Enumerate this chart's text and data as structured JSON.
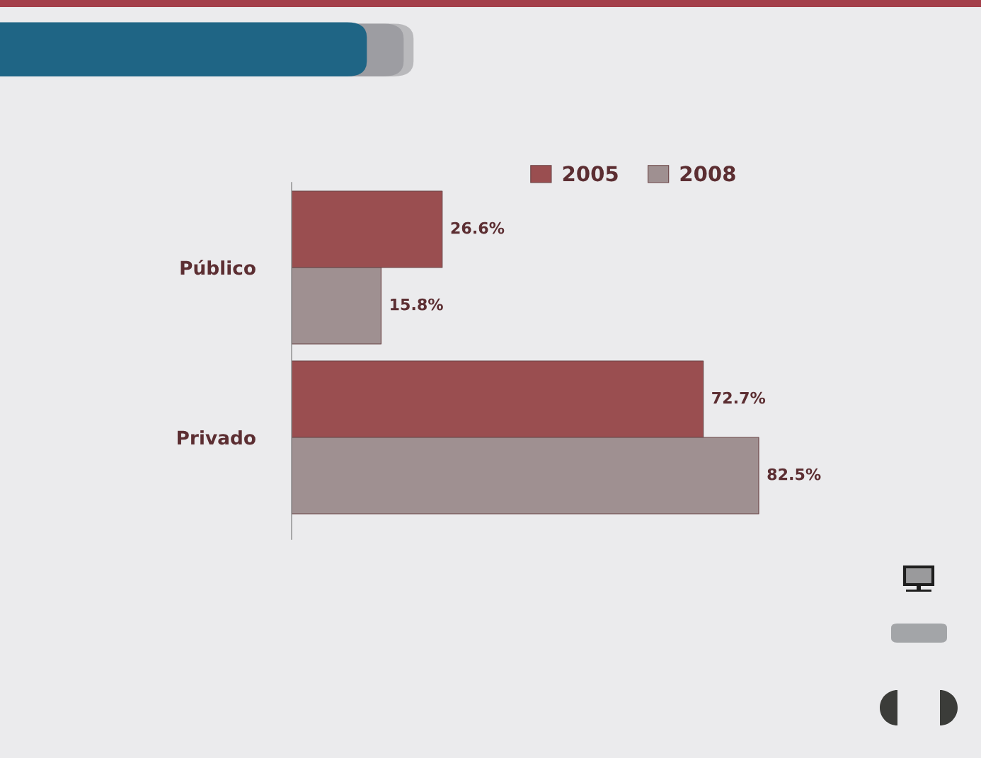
{
  "chart_data": {
    "type": "bar",
    "orientation": "horizontal",
    "categories": [
      "Público",
      "Privado"
    ],
    "series": [
      {
        "name": "2005",
        "color": "#9a4e50",
        "values": [
          26.6,
          72.7
        ],
        "value_labels": [
          "26.6%",
          "72.7%"
        ]
      },
      {
        "name": "2008",
        "color": "#9f9091",
        "values": [
          15.8,
          82.5
        ],
        "value_labels": [
          "15.8%",
          "82.5%"
        ]
      }
    ],
    "legend": "top",
    "grid": false,
    "tick_labels": "y"
  }
}
